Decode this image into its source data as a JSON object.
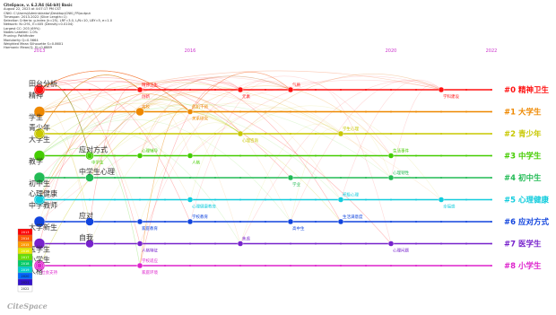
{
  "info": {
    "title": "CiteSpace, v. 6.2.R4 (64-bit) Basic",
    "lines": [
      "August 22, 2023 at 4:07:17 PM CST",
      "CNKI: C:\\Users\\Administrator\\Desktop\\CNKI_FR\\output",
      "Timespan: 2013-2022 (Slice Length=1)",
      "Selection Criteria: g-index (k=25), LRF=3.0, L/N=10, LBY=5, e=1.0",
      "Network: N=291, E=405 (Density=0.0104)",
      "Largest CC: 203 (69%)",
      "Nodes Labeled: 1.0%",
      "Pruning: Pathfinder",
      "Modularity Q=0.5664",
      "Weighted Mean Silhouette S=0.8601",
      "Harmonic Mean(Q, S)=0.6889"
    ]
  },
  "chart_data": {
    "type": "timeline",
    "x": {
      "ticks": [
        2013,
        2016,
        2020,
        2022
      ],
      "range": [
        2013,
        2022
      ]
    },
    "clusters": [
      {
        "id": 0,
        "label": "#0 精神卫生",
        "color": "#ff1111",
        "keywords": [
          {
            "text": "精神",
            "year": 2013
          },
          {
            "text": "田台分析",
            "year": 2013
          },
          {
            "text": "创新",
            "year": 2015
          },
          {
            "text": "精神卫生",
            "year": 2015
          },
          {
            "text": "元素",
            "year": 2017
          },
          {
            "text": "气质",
            "year": 2018
          },
          {
            "text": "学科建设",
            "year": 2021
          }
        ]
      },
      {
        "id": 1,
        "label": "#1 大学生",
        "color": "#ee8800",
        "keywords": [
          {
            "text": "学生",
            "year": 2013
          },
          {
            "text": "高校",
            "year": 2015
          },
          {
            "text": "关系研究",
            "year": 2016
          },
          {
            "text": "危机干预",
            "year": 2016
          }
        ]
      },
      {
        "id": 2,
        "label": "#2 青少年",
        "color": "#c8c800",
        "keywords": [
          {
            "text": "大学生",
            "year": 2013
          },
          {
            "text": "青少年",
            "year": 2013
          },
          {
            "text": "心理咨询",
            "year": 2017
          },
          {
            "text": "学生心理",
            "year": 2019
          }
        ]
      },
      {
        "id": 3,
        "label": "#3 中学生",
        "color": "#44cc00",
        "keywords": [
          {
            "text": "教学",
            "year": 2013
          },
          {
            "text": "应对方式",
            "year": 2014
          },
          {
            "text": "中学生",
            "year": 2014
          },
          {
            "text": "心理辅导",
            "year": 2015
          },
          {
            "text": "人格",
            "year": 2016
          },
          {
            "text": "生活事件",
            "year": 2020
          }
        ]
      },
      {
        "id": 4,
        "label": "#4 初中生",
        "color": "#22bb55",
        "keywords": [
          {
            "text": "初中生",
            "year": 2013
          },
          {
            "text": "中学生心理",
            "year": 2014
          },
          {
            "text": "学业",
            "year": 2018
          },
          {
            "text": "心理韧性",
            "year": 2020
          }
        ]
      },
      {
        "id": 5,
        "label": "#5 心理健康",
        "color": "#11ccdd",
        "keywords": [
          {
            "text": "中学教师",
            "year": 2013
          },
          {
            "text": "心理健康",
            "year": 2013
          },
          {
            "text": "心理健康教育",
            "year": 2016
          },
          {
            "text": "积极心理",
            "year": 2019
          },
          {
            "text": "幸福感",
            "year": 2021
          }
        ]
      },
      {
        "id": 6,
        "label": "#6 应对方式",
        "color": "#1144dd",
        "keywords": [
          {
            "text": "大学新生",
            "year": 2013
          },
          {
            "text": "应对",
            "year": 2014
          },
          {
            "text": "家庭教育",
            "year": 2015
          },
          {
            "text": "学校教育",
            "year": 2016
          },
          {
            "text": "高中生",
            "year": 2018
          },
          {
            "text": "生活满意度",
            "year": 2019
          }
        ]
      },
      {
        "id": 7,
        "label": "#7 医学生",
        "color": "#7722cc",
        "keywords": [
          {
            "text": "医学生",
            "year": 2013
          },
          {
            "text": "自我",
            "year": 2014
          },
          {
            "text": "人格特征",
            "year": 2015
          },
          {
            "text": "焦虑",
            "year": 2017
          },
          {
            "text": "心理问题",
            "year": 2020
          }
        ]
      },
      {
        "id": 8,
        "label": "#8 小学生",
        "color": "#dd22cc",
        "keywords": [
          {
            "text": "人格",
            "year": 2013
          },
          {
            "text": "小学生",
            "year": 2013
          },
          {
            "text": "家庭环境",
            "year": 2015
          },
          {
            "text": "学校适应",
            "year": 2015
          },
          {
            "text": "社会支持",
            "year": 2013
          }
        ]
      }
    ],
    "legend": {
      "placement": "bottom-left",
      "items": [
        "2013",
        "2014",
        "2015",
        "2016",
        "2017",
        "2018",
        "2019",
        "2020",
        "2021",
        "2022"
      ]
    }
  },
  "logo": {
    "text": "CiteSpace"
  }
}
